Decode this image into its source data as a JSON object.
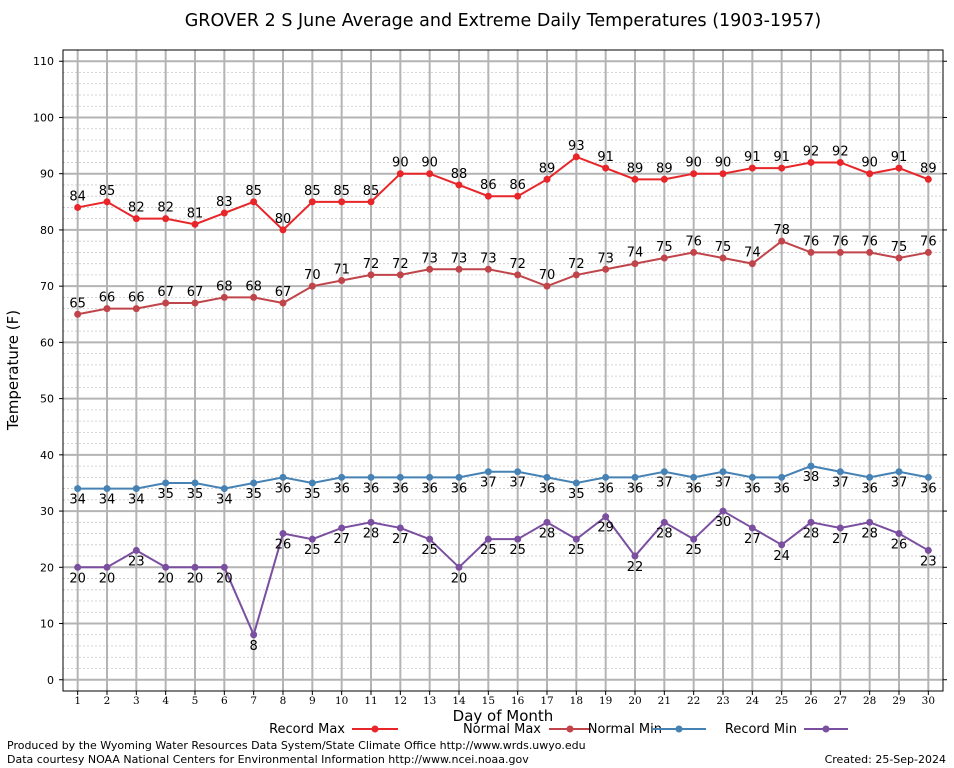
{
  "chart_data": {
    "type": "line",
    "title": "GROVER 2 S June Average and Extreme Daily Temperatures (1903-1957)",
    "xlabel": "Day of Month",
    "ylabel": "Temperature (F)",
    "ylim": [
      -2,
      112
    ],
    "yticks": [
      0,
      10,
      20,
      30,
      40,
      50,
      60,
      70,
      80,
      90,
      100,
      110
    ],
    "x": [
      1,
      2,
      3,
      4,
      5,
      6,
      7,
      8,
      9,
      10,
      11,
      12,
      13,
      14,
      15,
      16,
      17,
      18,
      19,
      20,
      21,
      22,
      23,
      24,
      25,
      26,
      27,
      28,
      29,
      30
    ],
    "grid": true,
    "legend_position": "bottom",
    "series": [
      {
        "name": "Record Max",
        "color": "#e8262a",
        "label_pos": "above",
        "values": [
          84,
          85,
          82,
          82,
          81,
          83,
          85,
          80,
          85,
          85,
          85,
          90,
          90,
          88,
          86,
          86,
          89,
          93,
          91,
          89,
          89,
          90,
          90,
          91,
          91,
          92,
          92,
          90,
          91,
          89
        ]
      },
      {
        "name": "Normal Max",
        "color": "#c0454a",
        "label_pos": "above",
        "values": [
          65,
          66,
          66,
          67,
          67,
          68,
          68,
          67,
          70,
          71,
          72,
          72,
          73,
          73,
          73,
          72,
          70,
          72,
          73,
          74,
          75,
          76,
          75,
          74,
          78,
          76,
          76,
          76,
          75,
          76
        ]
      },
      {
        "name": "Normal Min",
        "color": "#4682b4",
        "label_pos": "below",
        "values": [
          34,
          34,
          34,
          35,
          35,
          34,
          35,
          36,
          35,
          36,
          36,
          36,
          36,
          36,
          37,
          37,
          36,
          35,
          36,
          36,
          37,
          36,
          37,
          36,
          36,
          38,
          37,
          36,
          37,
          36
        ]
      },
      {
        "name": "Record Min",
        "color": "#7b4fa0",
        "label_pos": "below",
        "values": [
          20,
          20,
          23,
          20,
          20,
          20,
          8,
          26,
          25,
          27,
          28,
          27,
          25,
          20,
          25,
          25,
          28,
          25,
          29,
          22,
          28,
          25,
          30,
          27,
          24,
          28,
          27,
          28,
          26,
          23
        ]
      }
    ]
  },
  "footer": {
    "produced_by": "Produced by the Wyoming Water Resources Data System/State Climate Office http://www.wrds.uwyo.edu",
    "courtesy": "Data courtesy NOAA National Centers for Environmental Information http://www.ncei.noaa.gov",
    "created": "Created:  25-Sep-2024"
  }
}
